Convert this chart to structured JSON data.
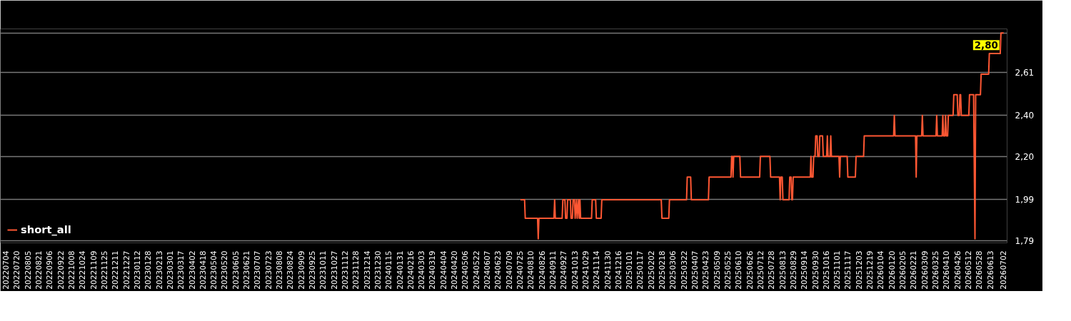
{
  "chart_data": {
    "type": "line",
    "legend": "bottom left",
    "grid": "y",
    "line_style": "solid",
    "marker": "none",
    "xlim": [
      "2022-06-26",
      "2026-07-08"
    ],
    "xticks": [
      {
        "value": "2022-07-04",
        "label": "20220704"
      },
      {
        "value": "2022-07-20",
        "label": "20220720"
      },
      {
        "value": "2022-08-05",
        "label": "20220805"
      },
      {
        "value": "2022-08-21",
        "label": "20220821"
      },
      {
        "value": "2022-09-06",
        "label": "20220906"
      },
      {
        "value": "2022-09-22",
        "label": "20220922"
      },
      {
        "value": "2022-10-08",
        "label": "20221008"
      },
      {
        "value": "2022-10-24",
        "label": "20221024"
      },
      {
        "value": "2022-11-09",
        "label": "20221109"
      },
      {
        "value": "2022-11-25",
        "label": "20221125"
      },
      {
        "value": "2022-12-11",
        "label": "20221211"
      },
      {
        "value": "2022-12-27",
        "label": "20221227"
      },
      {
        "value": "2023-01-12",
        "label": "20230112"
      },
      {
        "value": "2023-01-28",
        "label": "20230128"
      },
      {
        "value": "2023-02-13",
        "label": "20230213"
      },
      {
        "value": "2023-03-01",
        "label": "20230301"
      },
      {
        "value": "2023-03-17",
        "label": "20230317"
      },
      {
        "value": "2023-04-02",
        "label": "20230402"
      },
      {
        "value": "2023-04-18",
        "label": "20230418"
      },
      {
        "value": "2023-05-04",
        "label": "20230504"
      },
      {
        "value": "2023-05-20",
        "label": "20230520"
      },
      {
        "value": "2023-06-05",
        "label": "20230605"
      },
      {
        "value": "2023-06-21",
        "label": "20230621"
      },
      {
        "value": "2023-07-07",
        "label": "20230707"
      },
      {
        "value": "2023-07-23",
        "label": "20230723"
      },
      {
        "value": "2023-08-08",
        "label": "20230808"
      },
      {
        "value": "2023-08-24",
        "label": "20230824"
      },
      {
        "value": "2023-09-09",
        "label": "20230909"
      },
      {
        "value": "2023-09-25",
        "label": "20230925"
      },
      {
        "value": "2023-10-11",
        "label": "20231011"
      },
      {
        "value": "2023-10-27",
        "label": "20231027"
      },
      {
        "value": "2023-11-12",
        "label": "20231112"
      },
      {
        "value": "2023-11-28",
        "label": "20231128"
      },
      {
        "value": "2023-12-14",
        "label": "20231214"
      },
      {
        "value": "2023-12-30",
        "label": "20231230"
      },
      {
        "value": "2024-01-15",
        "label": "20240115"
      },
      {
        "value": "2024-01-31",
        "label": "20240131"
      },
      {
        "value": "2024-02-16",
        "label": "20240216"
      },
      {
        "value": "2024-03-03",
        "label": "20240303"
      },
      {
        "value": "2024-03-19",
        "label": "20240319"
      },
      {
        "value": "2024-04-04",
        "label": "20240404"
      },
      {
        "value": "2024-04-20",
        "label": "20240420"
      },
      {
        "value": "2024-05-06",
        "label": "20240506"
      },
      {
        "value": "2024-05-22",
        "label": "20240522"
      },
      {
        "value": "2024-06-07",
        "label": "20240607"
      },
      {
        "value": "2024-06-23",
        "label": "20240623"
      },
      {
        "value": "2024-07-09",
        "label": "20240709"
      },
      {
        "value": "2024-07-25",
        "label": "20240725"
      },
      {
        "value": "2024-08-10",
        "label": "20240810"
      },
      {
        "value": "2024-08-26",
        "label": "20240826"
      },
      {
        "value": "2024-09-11",
        "label": "20240911"
      },
      {
        "value": "2024-09-27",
        "label": "20240927"
      },
      {
        "value": "2024-10-13",
        "label": "20241013"
      },
      {
        "value": "2024-10-29",
        "label": "20241029"
      },
      {
        "value": "2024-11-14",
        "label": "20241114"
      },
      {
        "value": "2024-11-30",
        "label": "20241130"
      },
      {
        "value": "2024-12-16",
        "label": "20241216"
      },
      {
        "value": "2025-01-01",
        "label": "20250101"
      },
      {
        "value": "2025-01-17",
        "label": "20250117"
      },
      {
        "value": "2025-02-02",
        "label": "20250202"
      },
      {
        "value": "2025-02-18",
        "label": "20250218"
      },
      {
        "value": "2025-03-06",
        "label": "20250306"
      },
      {
        "value": "2025-03-22",
        "label": "20250322"
      },
      {
        "value": "2025-04-07",
        "label": "20250407"
      },
      {
        "value": "2025-04-23",
        "label": "20250423"
      },
      {
        "value": "2025-05-09",
        "label": "20250509"
      },
      {
        "value": "2025-05-25",
        "label": "20250525"
      },
      {
        "value": "2025-06-10",
        "label": "20250610"
      },
      {
        "value": "2025-06-26",
        "label": "20250626"
      },
      {
        "value": "2025-07-12",
        "label": "20250712"
      },
      {
        "value": "2025-07-28",
        "label": "20250728"
      },
      {
        "value": "2025-08-13",
        "label": "20250813"
      },
      {
        "value": "2025-08-29",
        "label": "20250829"
      },
      {
        "value": "2025-09-14",
        "label": "20250914"
      },
      {
        "value": "2025-09-30",
        "label": "20250930"
      },
      {
        "value": "2025-10-16",
        "label": "20251016"
      },
      {
        "value": "2025-11-01",
        "label": "20251101"
      },
      {
        "value": "2025-11-17",
        "label": "20251117"
      },
      {
        "value": "2025-12-03",
        "label": "20251203"
      },
      {
        "value": "2025-12-19",
        "label": "20251219"
      },
      {
        "value": "2026-01-04",
        "label": "20260104"
      },
      {
        "value": "2026-01-20",
        "label": "20260120"
      },
      {
        "value": "2026-02-05",
        "label": "20260205"
      },
      {
        "value": "2026-02-21",
        "label": "20260221"
      },
      {
        "value": "2026-03-09",
        "label": "20260309"
      },
      {
        "value": "2026-03-25",
        "label": "20260325"
      },
      {
        "value": "2026-04-10",
        "label": "20260410"
      },
      {
        "value": "2026-04-26",
        "label": "20260426"
      },
      {
        "value": "2026-05-12",
        "label": "20260512"
      },
      {
        "value": "2026-05-28",
        "label": "20260528"
      },
      {
        "value": "2026-06-13",
        "label": "20260613"
      },
      {
        "value": "2026-07-02",
        "label": "20260702"
      }
    ],
    "ylim": [
      1.78,
      2.82
    ],
    "yticks": [
      {
        "value": 1.79,
        "label": "1,79"
      },
      {
        "value": 1.99,
        "label": "1,99"
      },
      {
        "value": 2.2,
        "label": "2,20"
      },
      {
        "value": 2.4,
        "label": "2,40"
      },
      {
        "value": 2.61,
        "label": "2,61"
      },
      {
        "value": 2.8,
        "label": null
      }
    ],
    "annotations": [
      {
        "text": "2,80",
        "x": "2026-07-03",
        "y": 2.8
      }
    ],
    "series": [
      {
        "name": "short_all",
        "color": "#ff5733",
        "x": [
          "2024-07-26",
          "2024-08-01",
          "2024-08-02",
          "2024-08-20",
          "2024-08-21",
          "2024-08-22",
          "2024-09-13",
          "2024-09-14",
          "2024-09-15",
          "2024-09-25",
          "2024-09-26",
          "2024-09-29",
          "2024-09-30",
          "2024-10-02",
          "2024-10-03",
          "2024-10-07",
          "2024-10-08",
          "2024-10-10",
          "2024-10-11",
          "2024-10-13",
          "2024-10-14",
          "2024-10-16",
          "2024-10-17",
          "2024-10-19",
          "2024-10-20",
          "2024-10-21",
          "2024-10-22",
          "2024-11-07",
          "2024-11-08",
          "2024-11-13",
          "2024-11-14",
          "2024-11-21",
          "2024-11-22",
          "2025-02-17",
          "2025-02-18",
          "2025-02-28",
          "2025-03-01",
          "2025-03-26",
          "2025-03-27",
          "2025-04-01",
          "2025-04-02",
          "2025-04-27",
          "2025-04-28",
          "2025-05-30",
          "2025-05-31",
          "2025-06-01",
          "2025-06-02",
          "2025-06-03",
          "2025-06-12",
          "2025-06-13",
          "2025-07-11",
          "2025-07-12",
          "2025-07-26",
          "2025-07-27",
          "2025-08-09",
          "2025-08-10",
          "2025-08-11",
          "2025-08-13",
          "2025-08-14",
          "2025-08-23",
          "2025-08-24",
          "2025-08-26",
          "2025-08-27",
          "2025-08-28",
          "2025-08-29",
          "2025-09-23",
          "2025-09-24",
          "2025-09-25",
          "2025-09-27",
          "2025-09-28",
          "2025-09-30",
          "2025-10-01",
          "2025-10-03",
          "2025-10-04",
          "2025-10-06",
          "2025-10-07",
          "2025-10-11",
          "2025-10-12",
          "2025-10-17",
          "2025-10-18",
          "2025-10-19",
          "2025-10-22",
          "2025-10-23",
          "2025-10-24",
          "2025-11-04",
          "2025-11-05",
          "2025-11-06",
          "2025-11-16",
          "2025-11-17",
          "2025-11-28",
          "2025-11-29",
          "2025-12-10",
          "2025-12-11",
          "2026-01-23",
          "2026-01-24",
          "2026-01-25",
          "2026-02-24",
          "2026-02-25",
          "2026-02-26",
          "2026-03-05",
          "2026-03-06",
          "2026-03-07",
          "2026-03-26",
          "2026-03-27",
          "2026-03-28",
          "2026-04-04",
          "2026-04-05",
          "2026-04-06",
          "2026-04-08",
          "2026-04-09",
          "2026-04-10",
          "2026-04-12",
          "2026-04-13",
          "2026-04-20",
          "2026-04-21",
          "2026-04-26",
          "2026-04-27",
          "2026-04-29",
          "2026-04-30",
          "2026-05-01",
          "2026-05-02",
          "2026-05-13",
          "2026-05-14",
          "2026-05-20",
          "2026-05-22",
          "2026-05-23",
          "2026-05-30",
          "2026-05-31",
          "2026-06-11",
          "2026-06-12",
          "2026-06-28",
          "2026-06-29",
          "2026-07-03"
        ],
        "values": [
          1.99,
          1.99,
          1.9,
          1.9,
          1.8,
          1.9,
          1.9,
          1.99,
          1.9,
          1.9,
          1.99,
          1.99,
          1.9,
          1.9,
          1.99,
          1.99,
          1.9,
          1.9,
          1.99,
          1.99,
          1.9,
          1.99,
          1.9,
          1.99,
          1.9,
          1.99,
          1.9,
          1.9,
          1.99,
          1.99,
          1.9,
          1.9,
          1.99,
          1.99,
          1.9,
          1.9,
          1.99,
          1.99,
          2.1,
          2.1,
          1.99,
          1.99,
          2.1,
          2.1,
          2.2,
          2.2,
          2.1,
          2.2,
          2.2,
          2.1,
          2.1,
          2.2,
          2.2,
          2.1,
          2.1,
          1.99,
          2.1,
          2.1,
          1.99,
          1.99,
          2.1,
          2.1,
          1.99,
          1.99,
          2.1,
          2.1,
          2.2,
          2.1,
          2.1,
          2.2,
          2.2,
          2.3,
          2.3,
          2.2,
          2.2,
          2.3,
          2.3,
          2.2,
          2.2,
          2.3,
          2.2,
          2.2,
          2.3,
          2.2,
          2.2,
          2.1,
          2.2,
          2.2,
          2.1,
          2.1,
          2.2,
          2.2,
          2.3,
          2.3,
          2.4,
          2.3,
          2.3,
          2.1,
          2.3,
          2.3,
          2.4,
          2.3,
          2.3,
          2.4,
          2.3,
          2.3,
          2.4,
          2.3,
          2.3,
          2.4,
          2.3,
          2.3,
          2.4,
          2.4,
          2.5,
          2.5,
          2.4,
          2.4,
          2.5,
          2.5,
          2.4,
          2.4,
          2.5,
          2.5,
          1.8,
          2.5,
          2.5,
          2.6,
          2.6,
          2.7,
          2.7,
          2.8,
          2.8
        ]
      }
    ]
  }
}
